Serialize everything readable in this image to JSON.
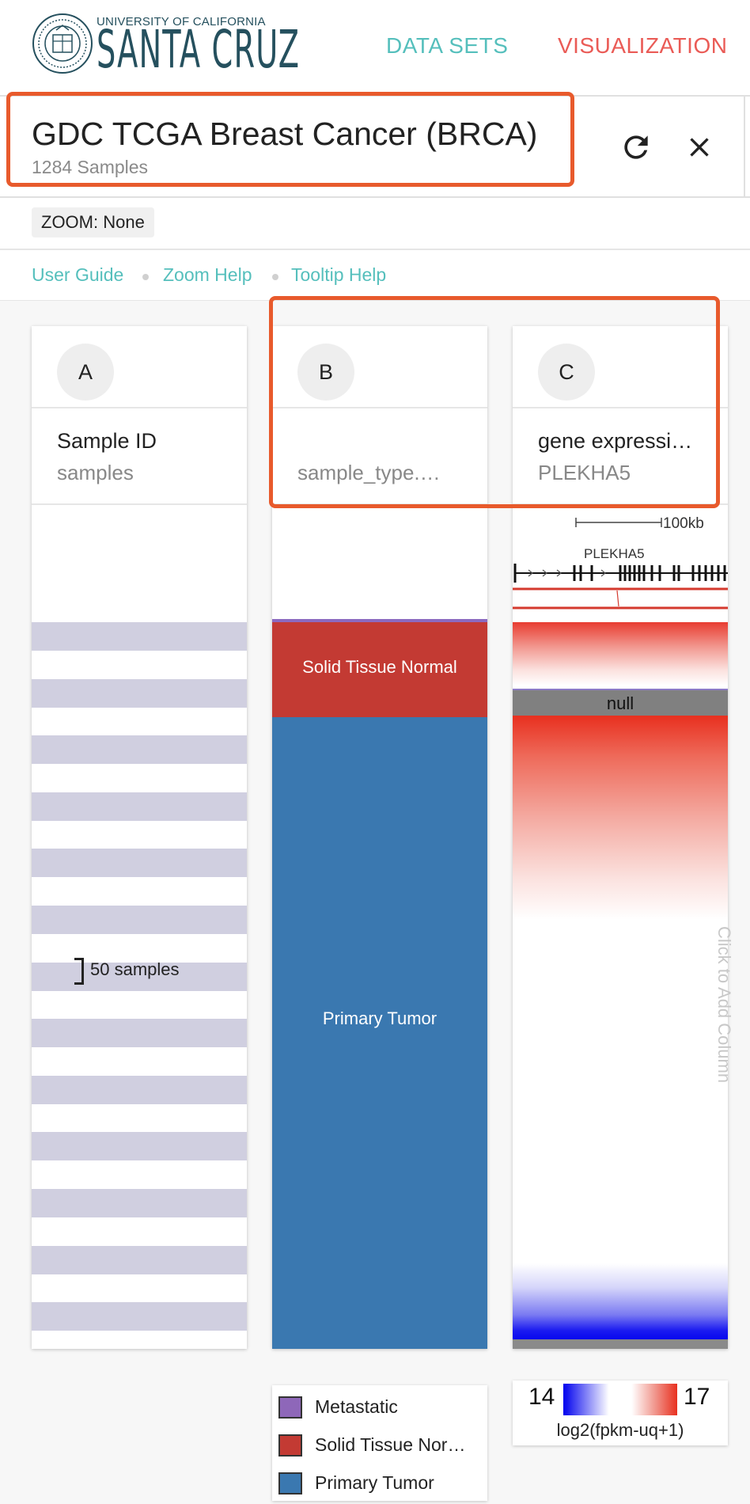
{
  "header": {
    "university": "UNIVERSITY OF CALIFORNIA",
    "campus": "SANTA CRUZ",
    "nav": [
      {
        "label": "DATA SETS"
      },
      {
        "label": "VISUALIZATION"
      }
    ]
  },
  "cohort": {
    "title": "GDC TCGA Breast Cancer (BRCA)",
    "samples": "1284 Samples"
  },
  "zoom": {
    "label": "ZOOM: None"
  },
  "help": {
    "links": [
      "User Guide",
      "Zoom Help",
      "Tooltip Help"
    ]
  },
  "columns": [
    {
      "letter": "A",
      "field": "Sample ID",
      "sub": "samples",
      "annotation": "50 samples"
    },
    {
      "letter": "B",
      "field": "",
      "sub": "sample_type.…",
      "segments": [
        {
          "label": "Solid Tissue Normal",
          "color": "#c33a33"
        },
        {
          "label": "Primary Tumor",
          "color": "#3a78b0"
        }
      ],
      "top_line_color": "#8c6ac0"
    },
    {
      "letter": "C",
      "field": "gene expressi…",
      "sub": "PLEKHA5",
      "gene": "PLEKHA5",
      "scale": "100kb",
      "null_label": "null"
    }
  ],
  "add_column_hint": "Click to Add Column",
  "legend_b": [
    {
      "label": "Metastatic",
      "color": "#8e67b9"
    },
    {
      "label": "Solid Tissue Nor…",
      "color": "#c33a33"
    },
    {
      "label": "Primary Tumor",
      "color": "#3a78b0"
    }
  ],
  "legend_c": {
    "min": "14",
    "max": "17",
    "unit": "log2(fpkm-uq+1)"
  },
  "colors": {
    "accent_teal": "#55bfbc",
    "accent_red": "#ea5b56",
    "highlight": "#e85a2c"
  }
}
